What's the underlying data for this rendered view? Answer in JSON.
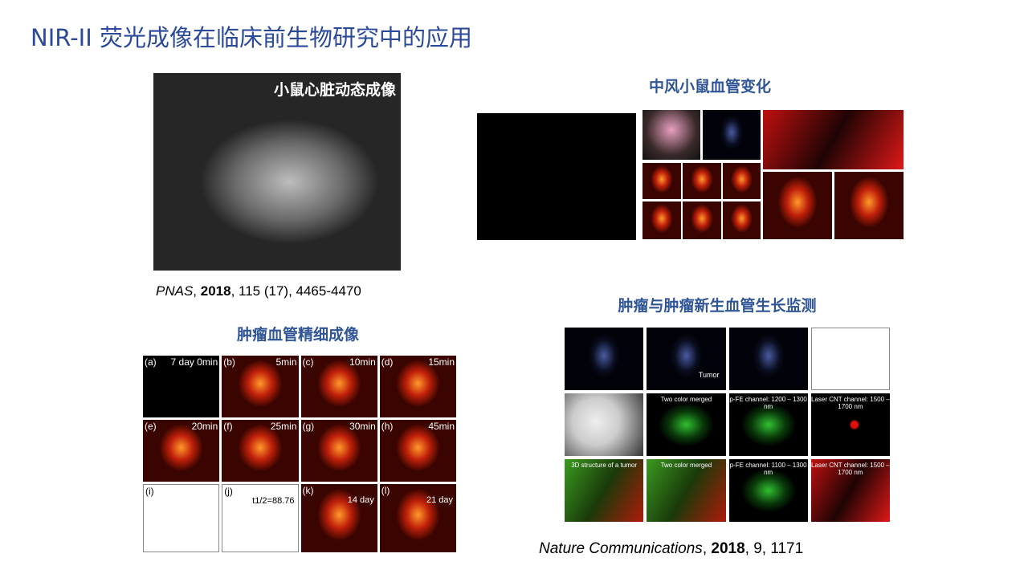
{
  "title": "NIR-II 荧光成像在临床前生物研究中的应用",
  "heart": {
    "label": "小鼠心脏动态成像",
    "citation": {
      "journal": "PNAS",
      "sep1": ", ",
      "year": "2018",
      "rest": ", 115 (17), 4465-4470"
    }
  },
  "tumor_vessel": {
    "heading": "肿瘤血管精细成像",
    "panels": [
      {
        "tag": "(a)",
        "label": "7 day     0min"
      },
      {
        "tag": "(b)",
        "label": "5min"
      },
      {
        "tag": "(c)",
        "label": "10min"
      },
      {
        "tag": "(d)",
        "label": "15min"
      },
      {
        "tag": "(e)",
        "label": "20min"
      },
      {
        "tag": "(f)",
        "label": "25min"
      },
      {
        "tag": "(g)",
        "label": "30min"
      },
      {
        "tag": "(h)",
        "label": "45min"
      }
    ],
    "bottom": [
      {
        "tag": "(i)",
        "label": ""
      },
      {
        "tag": "(j)",
        "label": "t1/2=88.76"
      },
      {
        "tag": "(k)",
        "label": "14 day"
      },
      {
        "tag": "(l)",
        "label": "21 day"
      }
    ]
  },
  "stroke": {
    "heading": "中风小鼠血管变化"
  },
  "tumor_growth": {
    "heading": "肿瘤与肿瘤新生血管生长监测",
    "row2": [
      "",
      "Two color merged",
      "p-FE channel: 1200 – 1300 nm",
      "Laser CNT channel: 1500 – 1700 nm"
    ],
    "row3": [
      "3D structure of a tumor",
      "Two color merged",
      "p-FE channel: 1100 – 1300 nm",
      "Laser CNT channel: 1500 – 1700 nm"
    ],
    "tumor_label": "Tumor",
    "citation": {
      "journal": "Nature Communications",
      "sep1": ", ",
      "year": "2018",
      "rest": ", 9, 1171"
    }
  }
}
